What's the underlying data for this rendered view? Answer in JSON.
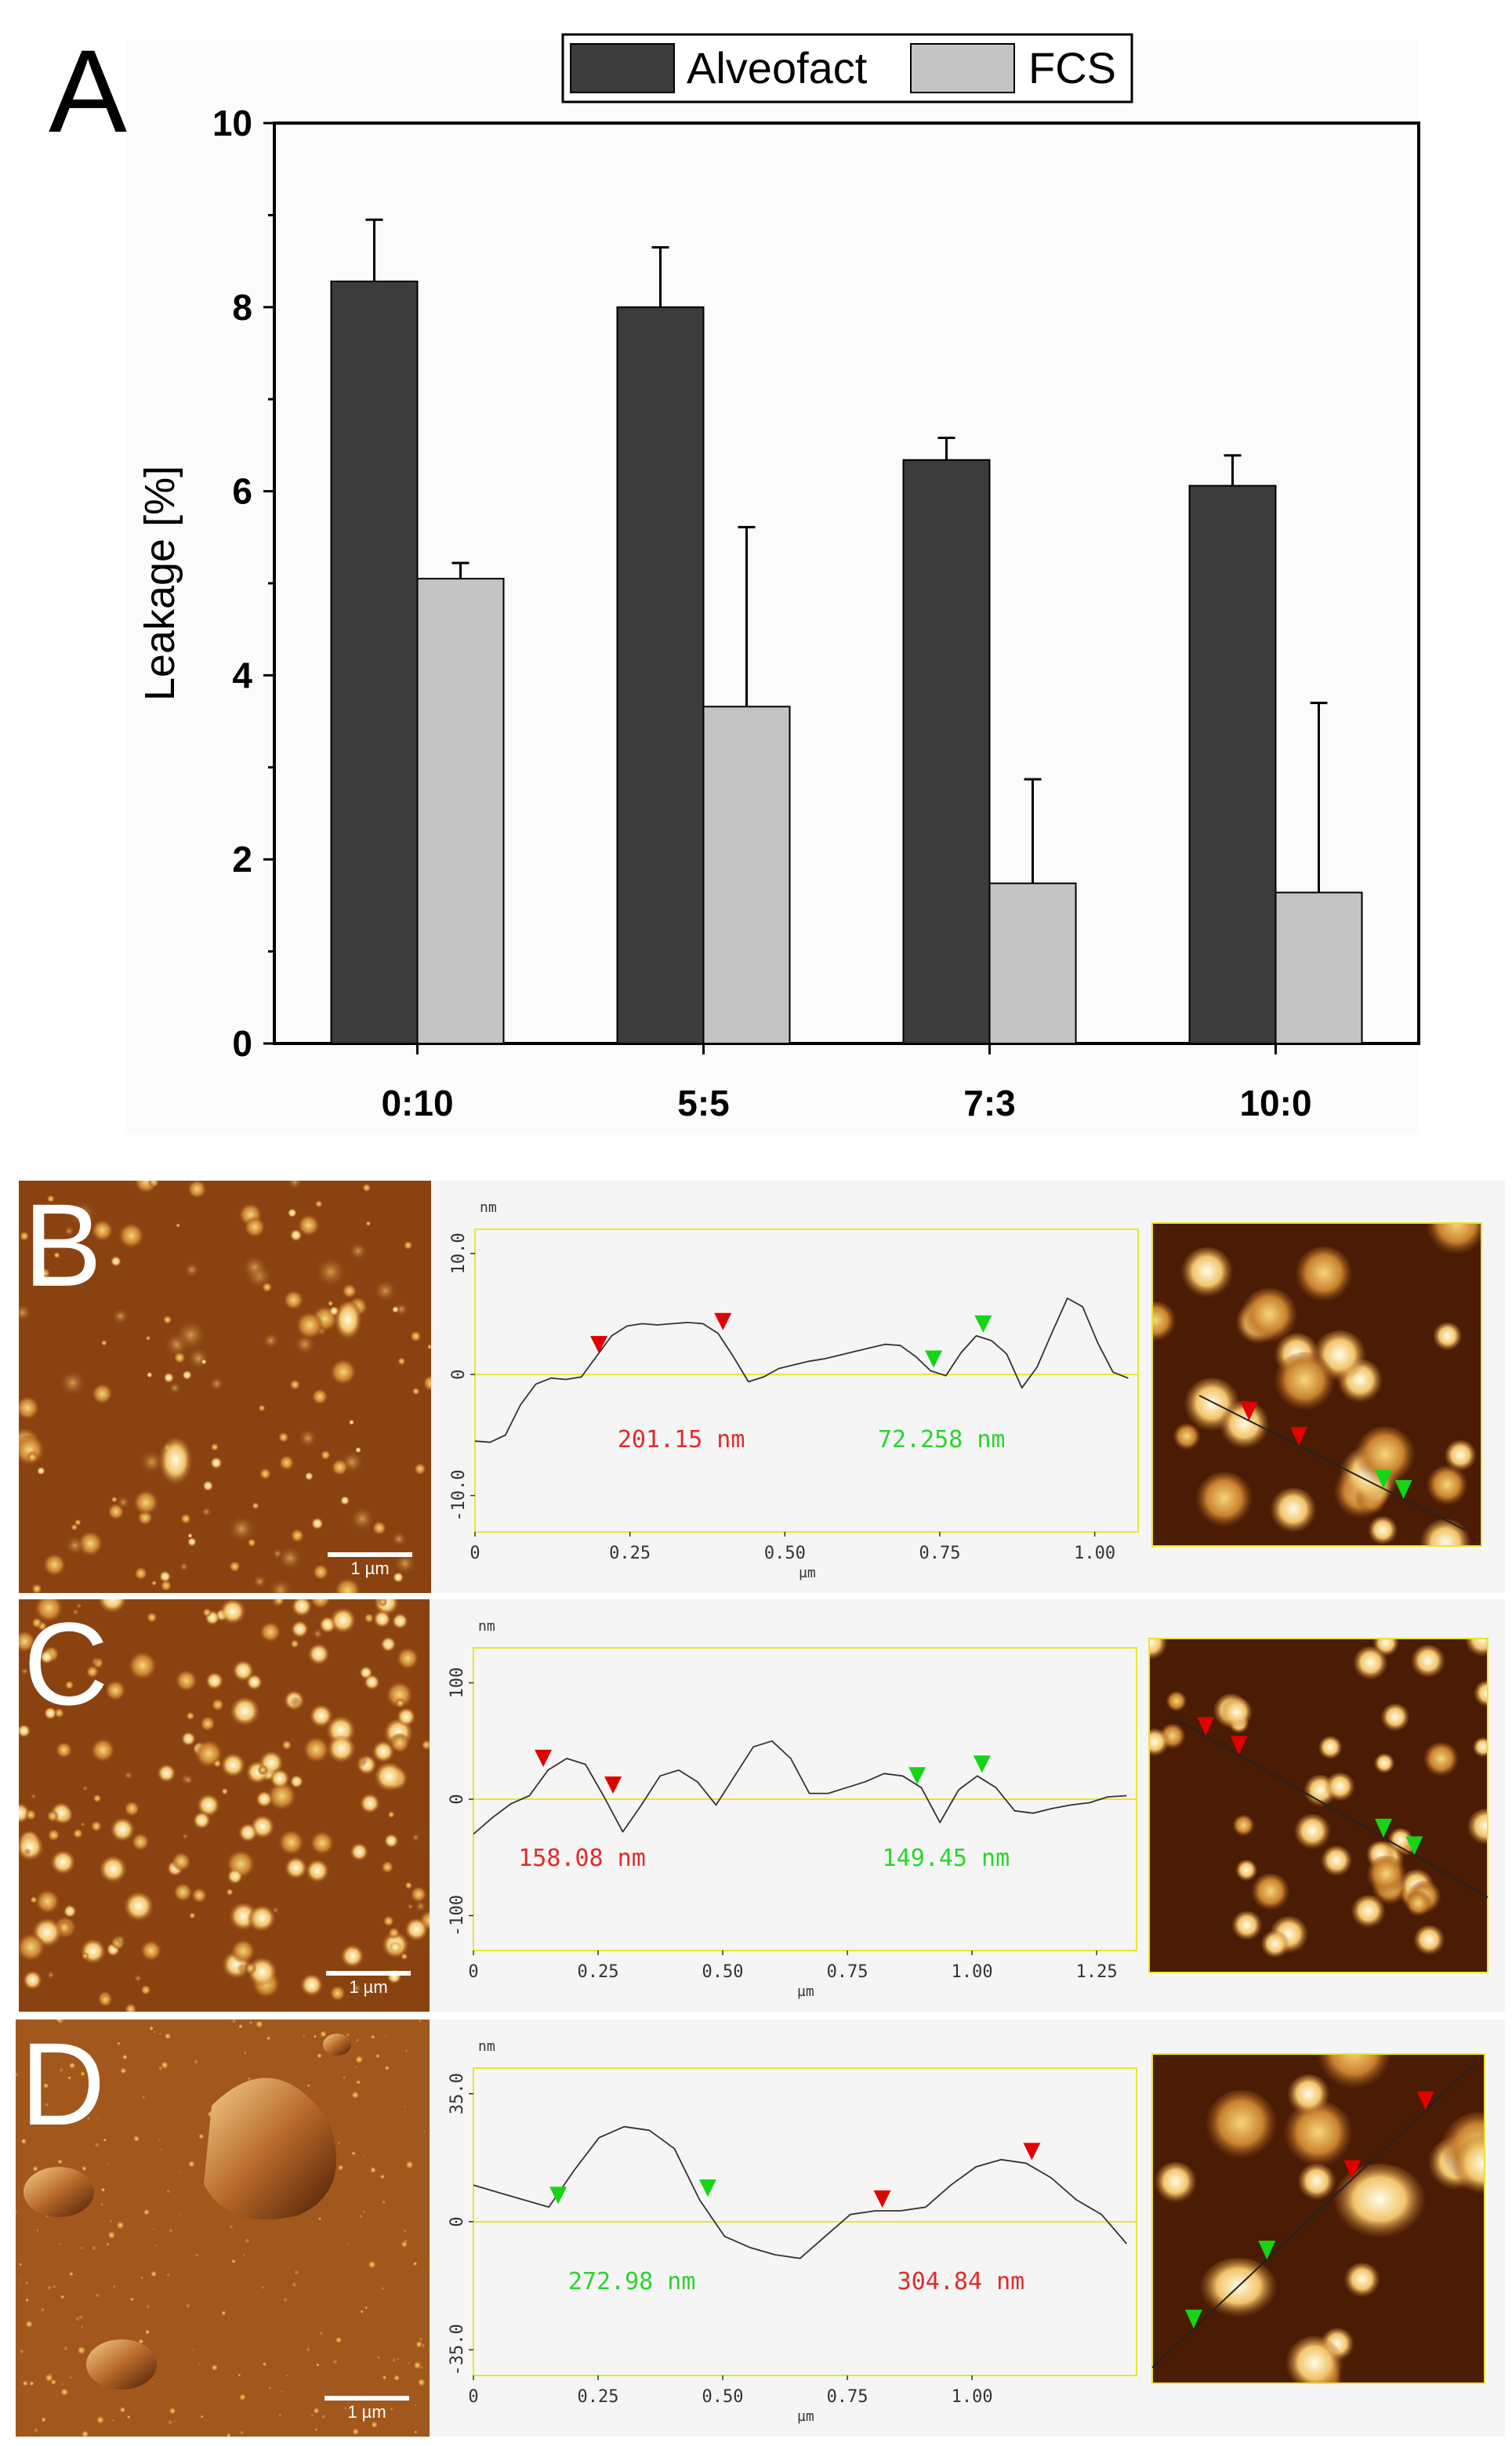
{
  "panel_a": {
    "letter": "A",
    "chart_data": {
      "type": "bar",
      "categories": [
        "0:10",
        "5:5",
        "7:3",
        "10:0"
      ],
      "series": [
        {
          "name": "Alveofact",
          "color": "#3c3c3c",
          "values": [
            8.28,
            8.0,
            6.34,
            6.06
          ],
          "errors": [
            0.67,
            0.65,
            0.24,
            0.33
          ]
        },
        {
          "name": "FCS",
          "color": "#c4c4c4",
          "values": [
            5.05,
            3.66,
            1.74,
            1.64
          ],
          "errors": [
            0.17,
            1.95,
            1.13,
            2.06
          ]
        }
      ],
      "ylabel": "Leakage [%]",
      "ylim": [
        0,
        10
      ],
      "yticks": [
        "0",
        "2",
        "4",
        "6",
        "8",
        "10"
      ],
      "legend": "top"
    }
  },
  "panels": [
    {
      "letter": "B",
      "scale_label": "1 µm",
      "profile": {
        "unit_top": "nm",
        "unit_bottom": "µm",
        "yticks": [
          "10.0",
          "0",
          "-10.0"
        ],
        "xticks": [
          "0",
          "0.25",
          "0.50",
          "0.75",
          "1.00"
        ],
        "xmax": 1.07,
        "ylim": [
          -13,
          12
        ],
        "y": [
          -5.5,
          -5.6,
          -5,
          -2.5,
          -0.8,
          -0.3,
          -0.4,
          -0.2,
          1.5,
          3.2,
          4.0,
          4.2,
          4.1,
          4.2,
          4.3,
          4.2,
          3.4,
          1.5,
          -0.6,
          -0.2,
          0.5,
          0.8,
          1.1,
          1.3,
          1.6,
          1.9,
          2.2,
          2.5,
          2.4,
          1.5,
          0.3,
          -0.1,
          1.8,
          3.2,
          2.8,
          1.7,
          -1.1,
          0.6,
          3.5,
          6.3,
          5.6,
          2.6,
          0.2,
          -0.3
        ],
        "markers": [
          {
            "x": 0.2,
            "color": "#e00000"
          },
          {
            "x": 0.4,
            "color": "#e00000"
          },
          {
            "x": 0.74,
            "color": "#16d516"
          },
          {
            "x": 0.82,
            "color": "#16d516"
          }
        ],
        "labels": [
          {
            "text": "201.15  nm",
            "color": "#e02b2b",
            "x": 0.23
          },
          {
            "text": "72.258  nm",
            "color": "#2bd42b",
            "x": 0.65
          }
        ]
      }
    },
    {
      "letter": "C",
      "scale_label": "1 µm",
      "profile": {
        "unit_top": "nm",
        "unit_bottom": "µm",
        "yticks": [
          "100",
          "0",
          "-100"
        ],
        "xticks": [
          "0",
          "0.25",
          "0.50",
          "0.75",
          "1.00",
          "1.25"
        ],
        "xmax": 1.33,
        "ylim": [
          -130,
          130
        ],
        "y": [
          -30,
          -16,
          -4,
          3,
          25,
          35,
          30,
          2,
          -28,
          -5,
          20,
          25,
          15,
          -5,
          20,
          45,
          50,
          35,
          5,
          5,
          10,
          15,
          22,
          20,
          10,
          -20,
          8,
          20,
          10,
          -10,
          -12,
          -8,
          -5,
          -3,
          2,
          3
        ],
        "markers": [
          {
            "x": 0.14,
            "color": "#e00000"
          },
          {
            "x": 0.28,
            "color": "#e00000"
          },
          {
            "x": 0.89,
            "color": "#16d516"
          },
          {
            "x": 1.02,
            "color": "#16d516"
          }
        ],
        "labels": [
          {
            "text": "158.08  nm",
            "color": "#e02b2b",
            "x": 0.09
          },
          {
            "text": "149.45  nm",
            "color": "#2bd42b",
            "x": 0.82
          }
        ]
      }
    },
    {
      "letter": "D",
      "scale_label": "1 µm",
      "profile": {
        "unit_top": "nm",
        "unit_bottom": "µm",
        "yticks": [
          "35.0",
          "0",
          "-35.0"
        ],
        "xticks": [
          "0",
          "0.25",
          "0.50",
          "0.75",
          "1.00"
        ],
        "xmax": 1.33,
        "ylim": [
          -42,
          42
        ],
        "y": [
          10,
          8,
          6,
          4,
          14,
          23,
          26,
          25,
          20,
          6,
          -4,
          -7,
          -9,
          -10,
          -4,
          2,
          3,
          3,
          4,
          10,
          15,
          17,
          16,
          12,
          6,
          2,
          -6
        ],
        "markers": [
          {
            "x": 0.17,
            "color": "#16d516"
          },
          {
            "x": 0.47,
            "color": "#16d516"
          },
          {
            "x": 0.82,
            "color": "#e00000"
          },
          {
            "x": 1.12,
            "color": "#e00000"
          }
        ],
        "labels": [
          {
            "text": "272.98  nm",
            "color": "#2bd42b",
            "x": 0.19
          },
          {
            "text": "304.84  nm",
            "color": "#e02b2b",
            "x": 0.85
          }
        ]
      }
    }
  ]
}
